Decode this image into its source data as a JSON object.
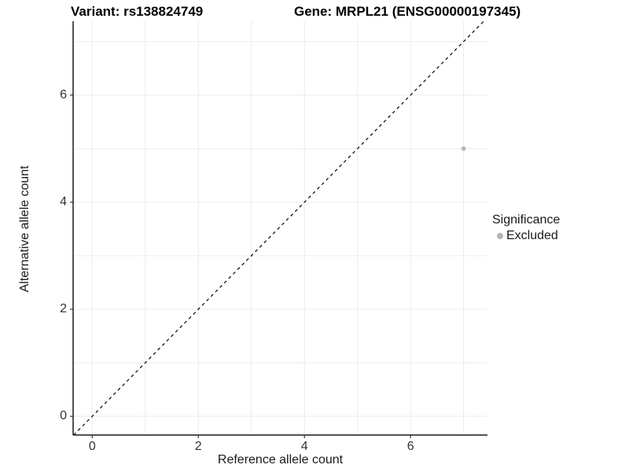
{
  "titles": {
    "left": "Variant: rs138824749",
    "right": "Gene: MRPL21 (ENSG00000197345)"
  },
  "legend": {
    "title": "Significance",
    "items": [
      {
        "label": "Excluded",
        "color": "#b5b5b5"
      }
    ]
  },
  "chart_data": {
    "type": "scatter",
    "title": "Variant: rs138824749  |  Gene: MRPL21 (ENSG00000197345)",
    "xlabel": "Reference allele count",
    "ylabel": "Alternative allele count",
    "xlim": [
      -0.36,
      7.45
    ],
    "ylim": [
      -0.35,
      7.38
    ],
    "x_ticks": [
      0,
      2,
      4,
      6
    ],
    "y_ticks": [
      0,
      2,
      4,
      6
    ],
    "gridline_positions": [
      0,
      1,
      2,
      3,
      4,
      5,
      6,
      7
    ],
    "grid_on": true,
    "legend_position": "right",
    "series": [
      {
        "name": "Excluded",
        "color": "#b5b5b5",
        "points": [
          {
            "x": 7,
            "y": 5
          }
        ]
      }
    ],
    "reference_line": {
      "type": "identity",
      "slope": 1,
      "intercept": 0,
      "style": "dashed",
      "color": "#000000"
    },
    "colors": {
      "grid": "#ebebeb",
      "axis_line": "#1a1a1a",
      "tick": "#333333",
      "point": "#b5b5b5"
    }
  }
}
